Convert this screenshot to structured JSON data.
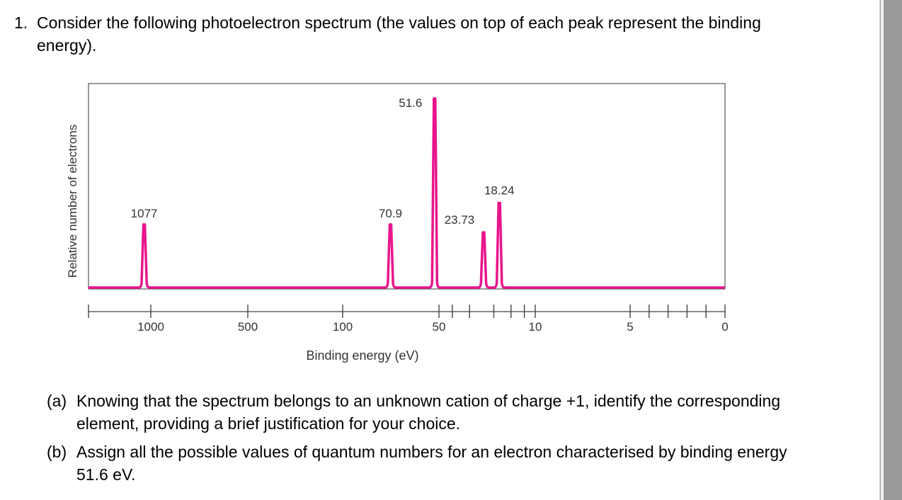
{
  "question": {
    "number": "1.",
    "text": "Consider the following photoelectron spectrum (the values on top of each peak represent the binding energy)."
  },
  "chart_data": {
    "type": "line",
    "xlabel": "Binding energy (eV)",
    "ylabel": "Relative number of electrons",
    "x_scale": "log (reversed)",
    "x_tick_labels": [
      "1000",
      "500",
      "100",
      "50",
      "10",
      "5",
      "0"
    ],
    "peaks": [
      {
        "label": "1077",
        "x": 1077,
        "relative_height": 0.32
      },
      {
        "label": "70.9",
        "x": 70.9,
        "relative_height": 0.32
      },
      {
        "label": "51.6",
        "x": 51.6,
        "relative_height": 0.96
      },
      {
        "label": "23.73",
        "x": 23.73,
        "relative_height": 0.28
      },
      {
        "label": "18.24",
        "x": 18.24,
        "relative_height": 0.43
      }
    ],
    "line_color": "#e8158c",
    "grid": false,
    "legend": "none"
  },
  "parts": [
    {
      "label": "(a)",
      "text": "Knowing that the spectrum belongs to an unknown cation of charge +1, identify the corresponding element, providing a brief justification for your choice."
    },
    {
      "label": "(b)",
      "text": "Assign all the possible values of quantum numbers for an electron characterised by binding energy 51.6 eV."
    }
  ]
}
